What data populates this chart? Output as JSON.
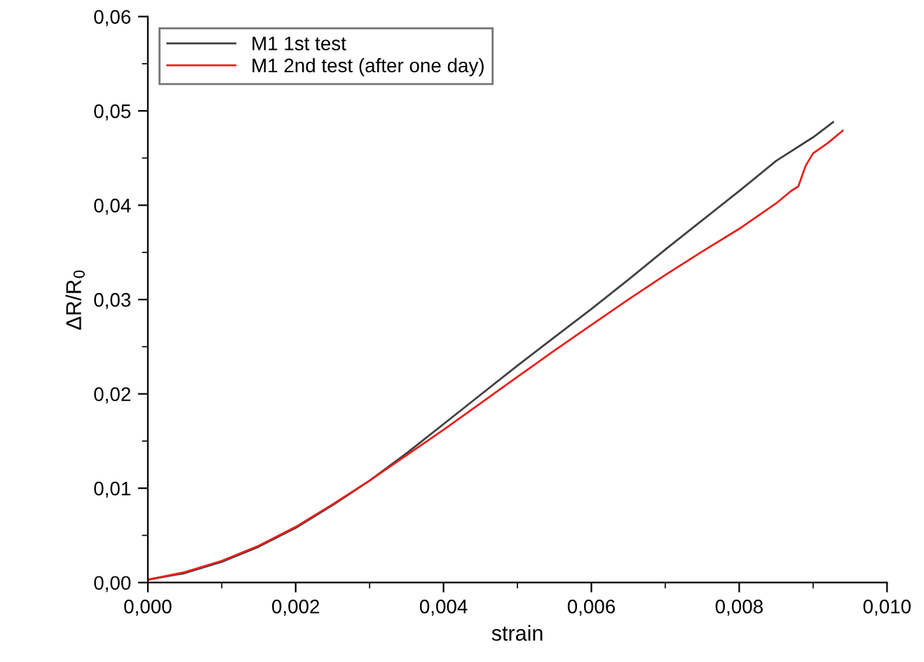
{
  "chart_data": {
    "type": "line",
    "xlabel": "strain",
    "ylabel": "ΔR/R$_{0}$",
    "xlim": [
      0,
      0.01
    ],
    "ylim": [
      0,
      0.06
    ],
    "xticks": [
      {
        "value": 0,
        "label": "0,000"
      },
      {
        "value": 0.002,
        "label": "0,002"
      },
      {
        "value": 0.004,
        "label": "0,004"
      },
      {
        "value": 0.006,
        "label": "0,006"
      },
      {
        "value": 0.008,
        "label": "0,008"
      },
      {
        "value": 0.01,
        "label": "0,010"
      }
    ],
    "yticks": [
      {
        "value": 0,
        "label": "0,00"
      },
      {
        "value": 0.01,
        "label": "0,01"
      },
      {
        "value": 0.02,
        "label": "0,02"
      },
      {
        "value": 0.03,
        "label": "0,03"
      },
      {
        "value": 0.04,
        "label": "0,04"
      },
      {
        "value": 0.05,
        "label": "0,05"
      },
      {
        "value": 0.06,
        "label": "0,06"
      }
    ],
    "grid": false,
    "legend": "top left",
    "series": [
      {
        "name": "M1 1st test",
        "color": "#404040",
        "line_style": "solid",
        "x": [
          0,
          0.0005,
          0.001,
          0.0015,
          0.002,
          0.0025,
          0.003,
          0.0035,
          0.004,
          0.0045,
          0.005,
          0.0055,
          0.006,
          0.0065,
          0.007,
          0.0075,
          0.008,
          0.0085,
          0.009,
          0.00927
        ],
        "values": [
          0.0003,
          0.001,
          0.0022,
          0.0038,
          0.0058,
          0.0082,
          0.0108,
          0.0137,
          0.0168,
          0.0199,
          0.023,
          0.026,
          0.029,
          0.0321,
          0.0353,
          0.0384,
          0.0415,
          0.0447,
          0.0472,
          0.0488
        ]
      },
      {
        "name": "M1 2nd test (after one day)",
        "color": "#e8201c",
        "line_style": "solid",
        "x": [
          0,
          0.0005,
          0.001,
          0.0015,
          0.002,
          0.0025,
          0.003,
          0.0035,
          0.004,
          0.0045,
          0.005,
          0.0055,
          0.006,
          0.0065,
          0.007,
          0.0075,
          0.008,
          0.0085,
          0.0087,
          0.0088,
          0.0089,
          0.009,
          0.0092,
          0.0094
        ],
        "values": [
          0.0003,
          0.0011,
          0.0023,
          0.0039,
          0.0059,
          0.0083,
          0.0108,
          0.0135,
          0.0162,
          0.019,
          0.0218,
          0.0246,
          0.0273,
          0.03,
          0.0326,
          0.0351,
          0.0375,
          0.0402,
          0.0415,
          0.042,
          0.0442,
          0.0455,
          0.0466,
          0.0479
        ]
      }
    ]
  }
}
